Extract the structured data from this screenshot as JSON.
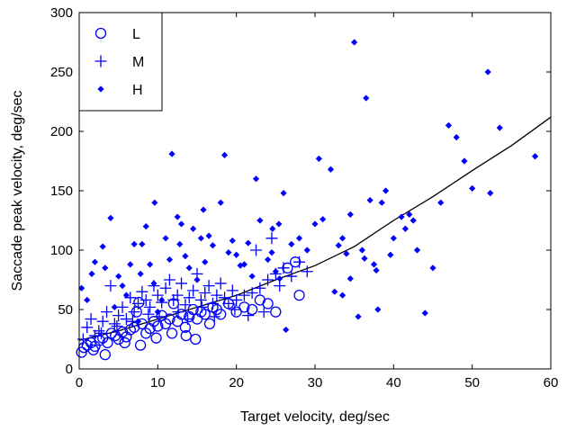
{
  "chart_data": {
    "type": "scatter",
    "title": "",
    "xlabel": "Target velocity, deg/sec",
    "ylabel": "Saccade peak velocity, deg/sec",
    "xlim": [
      0,
      60
    ],
    "ylim": [
      0,
      300
    ],
    "xticks": [
      "0",
      "10",
      "20",
      "30",
      "40",
      "50",
      "60"
    ],
    "yticks": [
      "0",
      "50",
      "100",
      "150",
      "200",
      "250",
      "300"
    ],
    "grid": false,
    "legend_position": "top-left",
    "series": [
      {
        "name": "L",
        "marker": "circle",
        "color": "#0000ff",
        "points": [
          [
            0.3,
            14
          ],
          [
            0.6,
            18
          ],
          [
            1.0,
            20
          ],
          [
            1.5,
            22
          ],
          [
            2.0,
            19
          ],
          [
            2.6,
            24
          ],
          [
            3.0,
            26
          ],
          [
            3.6,
            22
          ],
          [
            4.1,
            30
          ],
          [
            4.6,
            28
          ],
          [
            5.0,
            25
          ],
          [
            5.5,
            31
          ],
          [
            6.0,
            27
          ],
          [
            6.5,
            33
          ],
          [
            7.0,
            35
          ],
          [
            7.3,
            48
          ],
          [
            7.6,
            56
          ],
          [
            8.0,
            38
          ],
          [
            8.5,
            30
          ],
          [
            9.0,
            34
          ],
          [
            9.5,
            40
          ],
          [
            10.0,
            36
          ],
          [
            10.5,
            45
          ],
          [
            11.0,
            38
          ],
          [
            11.5,
            42
          ],
          [
            12.0,
            55
          ],
          [
            12.5,
            40
          ],
          [
            13.0,
            46
          ],
          [
            13.5,
            35
          ],
          [
            14.0,
            44
          ],
          [
            14.5,
            50
          ],
          [
            15.0,
            42
          ],
          [
            15.5,
            48
          ],
          [
            16.0,
            46
          ],
          [
            16.6,
            38
          ],
          [
            17.0,
            52
          ],
          [
            17.5,
            50
          ],
          [
            18.0,
            46
          ],
          [
            19.0,
            55
          ],
          [
            20.0,
            48
          ],
          [
            21.0,
            52
          ],
          [
            22.0,
            50
          ],
          [
            23.0,
            58
          ],
          [
            24.0,
            55
          ],
          [
            25.0,
            48
          ],
          [
            26.5,
            85
          ],
          [
            27.5,
            90
          ],
          [
            28.0,
            62
          ],
          [
            3.3,
            12
          ],
          [
            1.8,
            16
          ],
          [
            5.8,
            22
          ],
          [
            9.8,
            26
          ],
          [
            11.8,
            30
          ],
          [
            13.6,
            28
          ],
          [
            14.8,
            25
          ],
          [
            7.8,
            20
          ]
        ]
      },
      {
        "name": "M",
        "marker": "plus",
        "color": "#0000ff",
        "points": [
          [
            0.5,
            25
          ],
          [
            1.0,
            35
          ],
          [
            1.5,
            42
          ],
          [
            2.0,
            28
          ],
          [
            2.5,
            32
          ],
          [
            3.0,
            40
          ],
          [
            3.5,
            48
          ],
          [
            4.0,
            70
          ],
          [
            4.5,
            38
          ],
          [
            5.0,
            45
          ],
          [
            5.5,
            52
          ],
          [
            6.0,
            42
          ],
          [
            6.5,
            60
          ],
          [
            7.0,
            48
          ],
          [
            7.5,
            55
          ],
          [
            8.0,
            65
          ],
          [
            8.5,
            58
          ],
          [
            9.0,
            52
          ],
          [
            9.5,
            70
          ],
          [
            10.0,
            62
          ],
          [
            10.5,
            56
          ],
          [
            11.0,
            68
          ],
          [
            11.5,
            75
          ],
          [
            12.0,
            58
          ],
          [
            12.5,
            62
          ],
          [
            13.0,
            72
          ],
          [
            13.5,
            54
          ],
          [
            14.0,
            60
          ],
          [
            14.5,
            66
          ],
          [
            15.0,
            80
          ],
          [
            15.5,
            58
          ],
          [
            16.0,
            64
          ],
          [
            16.5,
            70
          ],
          [
            17.0,
            55
          ],
          [
            17.5,
            62
          ],
          [
            18.0,
            72
          ],
          [
            18.5,
            60
          ],
          [
            19.0,
            55
          ],
          [
            19.5,
            66
          ],
          [
            20.0,
            58
          ],
          [
            21.0,
            62
          ],
          [
            22.0,
            64
          ],
          [
            22.5,
            100
          ],
          [
            23.0,
            68
          ],
          [
            24.0,
            75
          ],
          [
            24.5,
            110
          ],
          [
            25.0,
            80
          ],
          [
            25.5,
            70
          ],
          [
            26.0,
            85
          ],
          [
            27.0,
            78
          ],
          [
            28.0,
            90
          ],
          [
            29.0,
            82
          ],
          [
            23.5,
            48
          ],
          [
            21.5,
            45
          ],
          [
            19.8,
            50
          ],
          [
            15.6,
            52
          ],
          [
            12.6,
            48
          ],
          [
            8.8,
            46
          ],
          [
            6.8,
            40
          ],
          [
            4.8,
            36
          ],
          [
            2.8,
            30
          ],
          [
            17.2,
            44
          ],
          [
            13.8,
            42
          ],
          [
            10.2,
            44
          ]
        ]
      },
      {
        "name": "H",
        "marker": "diamond",
        "color": "#0000ff",
        "points": [
          [
            0.3,
            68
          ],
          [
            1.0,
            58
          ],
          [
            1.6,
            80
          ],
          [
            2.0,
            90
          ],
          [
            3.0,
            103
          ],
          [
            3.3,
            85
          ],
          [
            4.0,
            127
          ],
          [
            4.5,
            52
          ],
          [
            5.0,
            78
          ],
          [
            5.5,
            70
          ],
          [
            6.0,
            62
          ],
          [
            6.5,
            88
          ],
          [
            7.0,
            105
          ],
          [
            7.5,
            40
          ],
          [
            7.8,
            80
          ],
          [
            8.0,
            105
          ],
          [
            8.5,
            120
          ],
          [
            9.0,
            88
          ],
          [
            9.5,
            72
          ],
          [
            10.0,
            48
          ],
          [
            10.5,
            58
          ],
          [
            11.0,
            110
          ],
          [
            11.5,
            92
          ],
          [
            11.8,
            181
          ],
          [
            12.5,
            128
          ],
          [
            13.0,
            122
          ],
          [
            13.5,
            95
          ],
          [
            14.0,
            85
          ],
          [
            14.5,
            118
          ],
          [
            15.0,
            75
          ],
          [
            15.5,
            110
          ],
          [
            16.0,
            90
          ],
          [
            16.5,
            112
          ],
          [
            17.0,
            104
          ],
          [
            18.0,
            140
          ],
          [
            18.5,
            180
          ],
          [
            19.0,
            98
          ],
          [
            19.5,
            108
          ],
          [
            20.0,
            96
          ],
          [
            20.5,
            87
          ],
          [
            21.0,
            88
          ],
          [
            21.5,
            106
          ],
          [
            22.0,
            78
          ],
          [
            22.5,
            160
          ],
          [
            23.0,
            125
          ],
          [
            24.0,
            92
          ],
          [
            24.5,
            98
          ],
          [
            25.0,
            82
          ],
          [
            25.5,
            76
          ],
          [
            26.0,
            148
          ],
          [
            26.3,
            33
          ],
          [
            27.0,
            105
          ],
          [
            28.0,
            110
          ],
          [
            29.0,
            100
          ],
          [
            30.0,
            122
          ],
          [
            30.5,
            177
          ],
          [
            31.0,
            126
          ],
          [
            32.0,
            168
          ],
          [
            33.0,
            104
          ],
          [
            33.5,
            110
          ],
          [
            34.0,
            97
          ],
          [
            34.5,
            130
          ],
          [
            35.0,
            275
          ],
          [
            35.5,
            44
          ],
          [
            36.0,
            100
          ],
          [
            36.5,
            228
          ],
          [
            37.0,
            142
          ],
          [
            37.5,
            88
          ],
          [
            38.0,
            50
          ],
          [
            38.5,
            140
          ],
          [
            39.0,
            150
          ],
          [
            40.0,
            110
          ],
          [
            41.0,
            128
          ],
          [
            42.0,
            130
          ],
          [
            42.5,
            125
          ],
          [
            43.0,
            100
          ],
          [
            44.0,
            47
          ],
          [
            45.0,
            85
          ],
          [
            46.0,
            140
          ],
          [
            47.0,
            205
          ],
          [
            48.0,
            195
          ],
          [
            49.0,
            175
          ],
          [
            50.0,
            152
          ],
          [
            52.0,
            250
          ],
          [
            52.3,
            148
          ],
          [
            53.5,
            203
          ],
          [
            58.0,
            179
          ],
          [
            32.5,
            65
          ],
          [
            33.5,
            62
          ],
          [
            34.5,
            76
          ],
          [
            36.3,
            93
          ],
          [
            37.8,
            83
          ],
          [
            39.6,
            96
          ],
          [
            41.5,
            118
          ],
          [
            25.4,
            122
          ],
          [
            24.6,
            118
          ],
          [
            15.8,
            134
          ],
          [
            12.8,
            105
          ],
          [
            9.6,
            140
          ]
        ]
      }
    ],
    "fit_curve": {
      "color": "#000000",
      "points": [
        [
          0,
          24
        ],
        [
          5,
          32
        ],
        [
          10,
          42
        ],
        [
          15,
          52
        ],
        [
          20,
          62
        ],
        [
          25,
          75
        ],
        [
          30,
          87
        ],
        [
          35,
          103
        ],
        [
          40,
          125
        ],
        [
          45,
          145
        ],
        [
          50,
          167
        ],
        [
          55,
          188
        ],
        [
          60,
          212
        ]
      ]
    }
  }
}
